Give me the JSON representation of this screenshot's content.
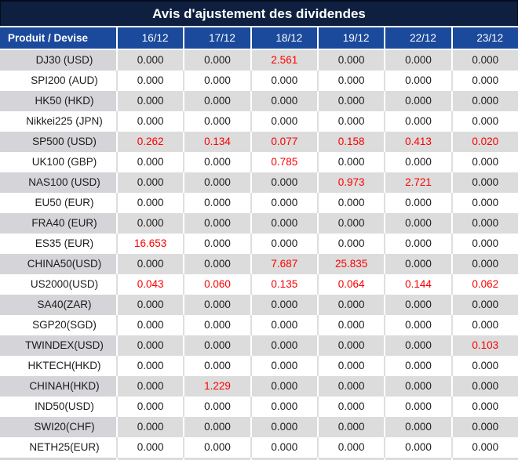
{
  "title": "Avis d'ajustement des dividendes",
  "columns": [
    "Produit / Devise",
    "16/12",
    "17/12",
    "18/12",
    "19/12",
    "22/12",
    "23/12"
  ],
  "rows": [
    {
      "product": "DJ30 (USD)",
      "values": [
        "0.000",
        "0.000",
        "2.561",
        "0.000",
        "0.000",
        "0.000"
      ],
      "red": [
        2
      ]
    },
    {
      "product": "SPI200 (AUD)",
      "values": [
        "0.000",
        "0.000",
        "0.000",
        "0.000",
        "0.000",
        "0.000"
      ],
      "red": []
    },
    {
      "product": "HK50 (HKD)",
      "values": [
        "0.000",
        "0.000",
        "0.000",
        "0.000",
        "0.000",
        "0.000"
      ],
      "red": []
    },
    {
      "product": "Nikkei225 (JPN)",
      "values": [
        "0.000",
        "0.000",
        "0.000",
        "0.000",
        "0.000",
        "0.000"
      ],
      "red": []
    },
    {
      "product": "SP500 (USD)",
      "values": [
        "0.262",
        "0.134",
        "0.077",
        "0.158",
        "0.413",
        "0.020"
      ],
      "red": [
        0,
        1,
        2,
        3,
        4,
        5
      ]
    },
    {
      "product": "UK100 (GBP)",
      "values": [
        "0.000",
        "0.000",
        "0.785",
        "0.000",
        "0.000",
        "0.000"
      ],
      "red": [
        2
      ]
    },
    {
      "product": "NAS100 (USD)",
      "values": [
        "0.000",
        "0.000",
        "0.000",
        "0.973",
        "2.721",
        "0.000"
      ],
      "red": [
        3,
        4
      ]
    },
    {
      "product": "EU50 (EUR)",
      "values": [
        "0.000",
        "0.000",
        "0.000",
        "0.000",
        "0.000",
        "0.000"
      ],
      "red": []
    },
    {
      "product": "FRA40 (EUR)",
      "values": [
        "0.000",
        "0.000",
        "0.000",
        "0.000",
        "0.000",
        "0.000"
      ],
      "red": []
    },
    {
      "product": "ES35 (EUR)",
      "values": [
        "16.653",
        "0.000",
        "0.000",
        "0.000",
        "0.000",
        "0.000"
      ],
      "red": [
        0
      ]
    },
    {
      "product": "CHINA50(USD)",
      "values": [
        "0.000",
        "0.000",
        "7.687",
        "25.835",
        "0.000",
        "0.000"
      ],
      "red": [
        2,
        3
      ]
    },
    {
      "product": "US2000(USD)",
      "values": [
        "0.043",
        "0.060",
        "0.135",
        "0.064",
        "0.144",
        "0.062"
      ],
      "red": [
        0,
        1,
        2,
        3,
        4,
        5
      ]
    },
    {
      "product": "SA40(ZAR)",
      "values": [
        "0.000",
        "0.000",
        "0.000",
        "0.000",
        "0.000",
        "0.000"
      ],
      "red": []
    },
    {
      "product": "SGP20(SGD)",
      "values": [
        "0.000",
        "0.000",
        "0.000",
        "0.000",
        "0.000",
        "0.000"
      ],
      "red": []
    },
    {
      "product": "TWINDEX(USD)",
      "values": [
        "0.000",
        "0.000",
        "0.000",
        "0.000",
        "0.000",
        "0.103"
      ],
      "red": [
        5
      ]
    },
    {
      "product": "HKTECH(HKD)",
      "values": [
        "0.000",
        "0.000",
        "0.000",
        "0.000",
        "0.000",
        "0.000"
      ],
      "red": []
    },
    {
      "product": "CHINAH(HKD)",
      "values": [
        "0.000",
        "1.229",
        "0.000",
        "0.000",
        "0.000",
        "0.000"
      ],
      "red": [
        1
      ]
    },
    {
      "product": "IND50(USD)",
      "values": [
        "0.000",
        "0.000",
        "0.000",
        "0.000",
        "0.000",
        "0.000"
      ],
      "red": []
    },
    {
      "product": "SWI20(CHF)",
      "values": [
        "0.000",
        "0.000",
        "0.000",
        "0.000",
        "0.000",
        "0.000"
      ],
      "red": []
    },
    {
      "product": "NETH25(EUR)",
      "values": [
        "0.000",
        "0.000",
        "0.000",
        "0.000",
        "0.000",
        "0.000"
      ],
      "red": []
    }
  ],
  "colors": {
    "title_bg": "#0e1f3f",
    "header_bg": "#1b4a9c",
    "row_gray": "#dcdcdc",
    "row_gray_first": "#d4d4d9",
    "red_value": "#fb0000",
    "text": "#1c1c1c"
  }
}
